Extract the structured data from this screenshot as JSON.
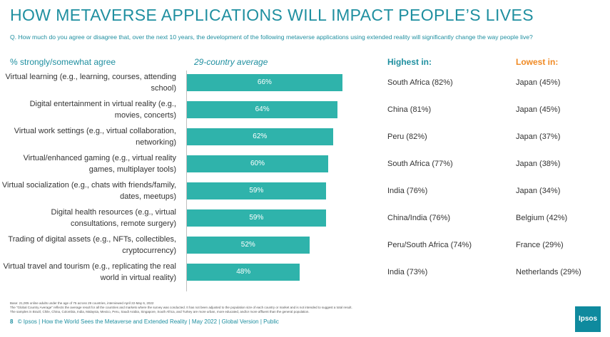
{
  "title": "HOW METAVERSE APPLICATIONS WILL IMPACT PEOPLE’S LIVES",
  "question": "Q. How much do you agree or disagree that, over the next 10 years, the development of the following metaverse applications using extended reality will significantly change the way people live?",
  "headers": {
    "pct": "% strongly/somewhat agree",
    "avg": "29-country average",
    "high": "Highest in:",
    "low": "Lowest in:"
  },
  "colors": {
    "bar": "#2fb3ab",
    "title": "#1f8fa0",
    "lowest_header": "#f08a24"
  },
  "rows": [
    {
      "label": "Virtual learning (e.g., learning, courses, attending school)",
      "value_label": "66%",
      "high": "South Africa (82%)",
      "low": "Japan (45%)"
    },
    {
      "label": "Digital entertainment in virtual reality (e.g., movies, concerts)",
      "value_label": "64%",
      "high": "China (81%)",
      "low": "Japan (45%)"
    },
    {
      "label": "Virtual work settings (e.g., virtual collaboration, networking)",
      "value_label": "62%",
      "high": "Peru (82%)",
      "low": "Japan (37%)"
    },
    {
      "label": "Virtual/enhanced gaming (e.g., virtual reality games, multiplayer tools)",
      "value_label": "60%",
      "high": "South Africa (77%)",
      "low": "Japan (38%)"
    },
    {
      "label": "Virtual socialization (e.g., chats with friends/family, dates, meetups)",
      "value_label": "59%",
      "high": "India (76%)",
      "low": "Japan (34%)"
    },
    {
      "label": "Digital health resources (e.g., virtual consultations, remote surgery)",
      "value_label": "59%",
      "high": "China/India (76%)",
      "low": "Belgium (42%)"
    },
    {
      "label": "Trading of digital assets (e.g., NFTs, collectibles, cryptocurrency)",
      "value_label": "52%",
      "high": "Peru/South Africa (74%)",
      "low": "France (29%)"
    },
    {
      "label": "Virtual travel and tourism (e.g., replicating the real world in virtual reality)",
      "value_label": "48%",
      "high": "India (73%)",
      "low": "Netherlands (29%)"
    }
  ],
  "chart_data": {
    "type": "bar",
    "orientation": "horizontal",
    "categories": [
      "Virtual learning (e.g., learning, courses, attending school)",
      "Digital entertainment in virtual reality (e.g., movies, concerts)",
      "Virtual work settings (e.g., virtual collaboration, networking)",
      "Virtual/enhanced gaming (e.g., virtual reality games, multiplayer tools)",
      "Virtual socialization (e.g., chats with friends/family, dates, meetups)",
      "Digital health resources (e.g., virtual consultations, remote surgery)",
      "Trading of digital assets (e.g., NFTs, collectibles, cryptocurrency)",
      "Virtual travel and tourism (e.g., replicating the real world in virtual reality)"
    ],
    "values": [
      66,
      64,
      62,
      60,
      59,
      59,
      52,
      48
    ],
    "title": "HOW METAVERSE APPLICATIONS WILL IMPACT PEOPLE’S LIVES",
    "xlim": [
      0,
      100
    ],
    "grid": false
  },
  "base_note": "Base: 21,005 online adults under the age of 75 across 29 countries, interviewed April 22-May 6, 2022\nThe “Global Country Average” reflects the average result for all the countries and markets where the survey was conducted. It has not been adjusted to the population size of each country or market and is not intended to suggest a total result.\nThe samples in Brazil, Chile, China, Colombia, India, Malaysia, Mexico, Peru, Saudi Arabia, Singapore, South Africa, and Turkey are more urban, more educated, and/or more affluent than the general population.",
  "footer": {
    "page": "8",
    "text": "© Ipsos | How the World Sees the Metaverse and Extended Reality | May 2022 | Global Version | Public"
  },
  "logo": "Ipsos"
}
